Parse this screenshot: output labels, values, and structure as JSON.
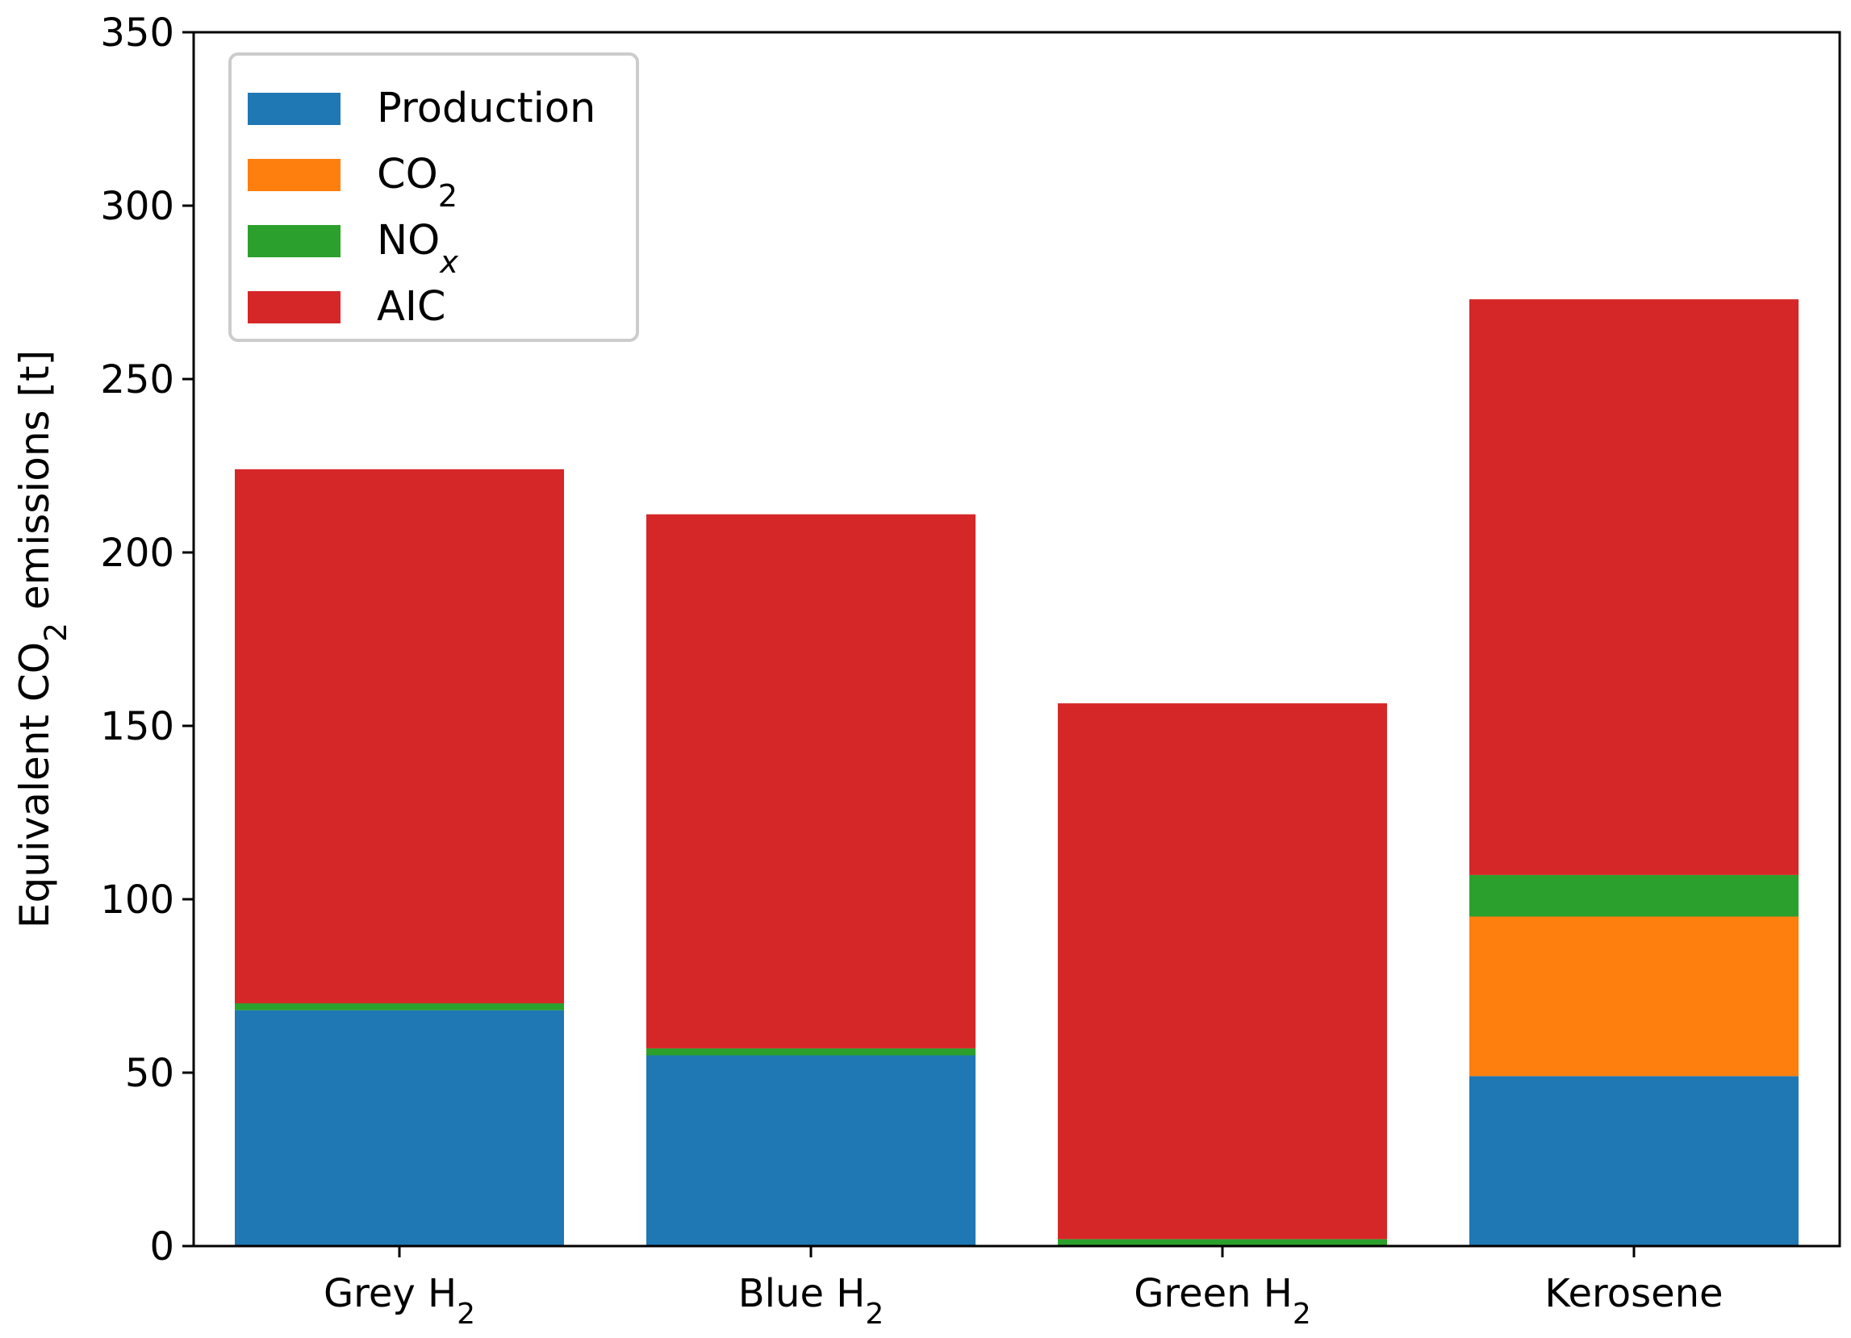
{
  "chart_data": {
    "type": "bar",
    "stacked": true,
    "title": "",
    "xlabel": "",
    "ylabel": {
      "base": "Equivalent CO",
      "sub": "2",
      "rest": " emissions [t]"
    },
    "ylim": [
      0,
      350
    ],
    "yticks": [
      0,
      50,
      100,
      150,
      200,
      250,
      300,
      350
    ],
    "grid": false,
    "legend_position": "top-left",
    "categories": [
      {
        "base": "Grey H",
        "sub": "2"
      },
      {
        "base": "Blue H",
        "sub": "2"
      },
      {
        "base": "Green H",
        "sub": "2"
      },
      {
        "base": "Kerosene",
        "sub": ""
      }
    ],
    "series": [
      {
        "name": "Production",
        "label_base": "Production",
        "label_sub": "",
        "color": "#1f77b4",
        "values": [
          68,
          55,
          0,
          49
        ]
      },
      {
        "name": "CO2",
        "label_base": "CO",
        "label_sub": "2",
        "color": "#ff7f0e",
        "values": [
          0,
          0,
          0,
          46
        ]
      },
      {
        "name": "NOx",
        "label_base": "NO",
        "label_sub": "x",
        "color": "#2ca02c",
        "values": [
          2,
          2,
          2,
          12
        ]
      },
      {
        "name": "AIC",
        "label_base": "AIC",
        "label_sub": "",
        "color": "#d62728",
        "values": [
          154,
          154,
          154.5,
          166
        ]
      }
    ]
  }
}
